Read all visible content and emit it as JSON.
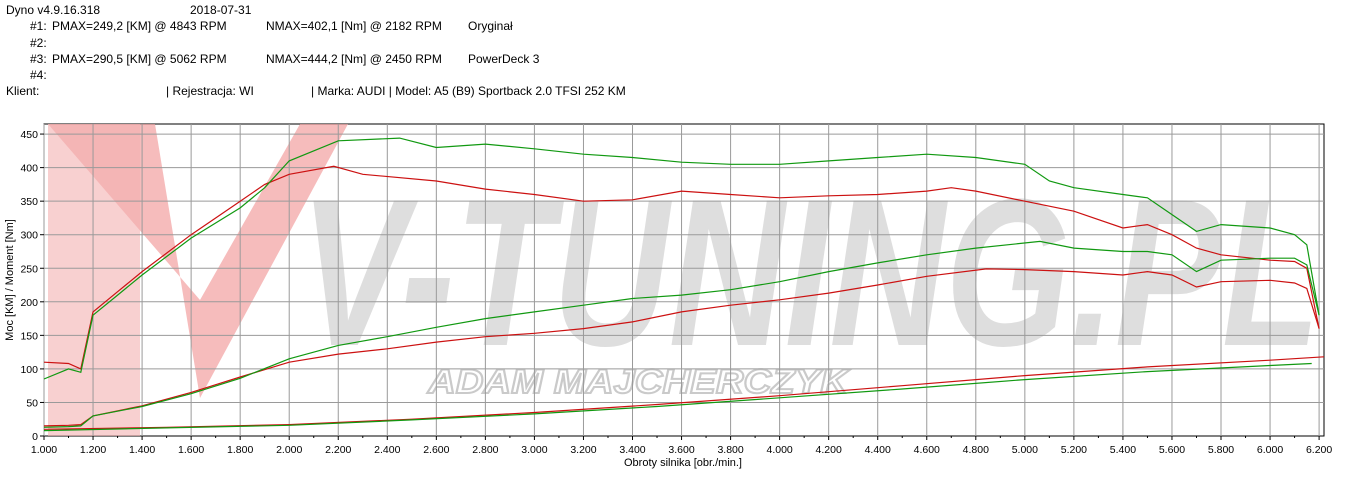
{
  "header": {
    "app_version": "Dyno v4.9.16.318",
    "date": "2018-07-31",
    "runs": [
      {
        "id": "#1:",
        "pmax": "PMAX=249,2 [KM] @ 4843 RPM",
        "nmax": "NMAX=402,1 [Nm] @ 2182 RPM",
        "label": "Oryginał"
      },
      {
        "id": "#2:",
        "pmax": "",
        "nmax": "",
        "label": ""
      },
      {
        "id": "#3:",
        "pmax": "PMAX=290,5 [KM] @ 5062 RPM",
        "nmax": "NMAX=444,2 [Nm] @ 2450 RPM",
        "label": "PowerDeck 3"
      },
      {
        "id": "#4:",
        "pmax": "",
        "nmax": "",
        "label": ""
      }
    ],
    "client_label": "Klient:",
    "registration": "| Rejestracja: WI",
    "vehicle": "| Marka: AUDI | Model: A5 (B9) Sportback 2.0 TFSI 252 KM"
  },
  "watermark": {
    "brand": "V-TUNING.PL",
    "owner": "ADAM MAJCHERCZYK"
  },
  "colors": {
    "original": "#cc1111",
    "tuned": "#119911",
    "grid": "#9a9a9a",
    "watermark_gray": "#d2d2d2",
    "watermark_red": "#f2a0a0"
  },
  "chart_data": {
    "type": "line",
    "xlabel": "Obroty silnika [obr./min.]",
    "ylabel": "Moc [KM] / Moment [Nm]",
    "xlim": [
      1000,
      6220
    ],
    "ylim": [
      0,
      465
    ],
    "x_ticks": [
      1000,
      1200,
      1400,
      1600,
      1800,
      2000,
      2200,
      2400,
      2600,
      2800,
      3000,
      3200,
      3400,
      3600,
      3800,
      4000,
      4200,
      4400,
      4600,
      4800,
      5000,
      5200,
      5400,
      5600,
      5800,
      6000,
      6200
    ],
    "x_tick_labels": [
      "1.000",
      "1.200",
      "1.400",
      "1.600",
      "1.800",
      "2.000",
      "2.200",
      "2.400",
      "2.600",
      "2.800",
      "3.000",
      "3.200",
      "3.400",
      "3.600",
      "3.800",
      "4.000",
      "4.200",
      "4.400",
      "4.600",
      "4.800",
      "5.000",
      "5.200",
      "5.400",
      "5.600",
      "5.800",
      "6.000",
      "6.200"
    ],
    "y_ticks": [
      0,
      50,
      100,
      150,
      200,
      250,
      300,
      350,
      400,
      450
    ],
    "grid": true,
    "series": [
      {
        "name": "#1 Oryginał",
        "quantity": "torque",
        "color": "#cc1111",
        "points": [
          [
            1000,
            110
          ],
          [
            1100,
            108
          ],
          [
            1150,
            100
          ],
          [
            1200,
            185
          ],
          [
            1300,
            215
          ],
          [
            1400,
            245
          ],
          [
            1600,
            300
          ],
          [
            1800,
            350
          ],
          [
            1900,
            375
          ],
          [
            2000,
            390
          ],
          [
            2182,
            402
          ],
          [
            2300,
            390
          ],
          [
            2600,
            380
          ],
          [
            2800,
            368
          ],
          [
            3000,
            360
          ],
          [
            3200,
            350
          ],
          [
            3400,
            352
          ],
          [
            3600,
            365
          ],
          [
            3800,
            360
          ],
          [
            4000,
            355
          ],
          [
            4200,
            358
          ],
          [
            4400,
            360
          ],
          [
            4600,
            365
          ],
          [
            4700,
            370
          ],
          [
            4800,
            365
          ],
          [
            5000,
            350
          ],
          [
            5200,
            335
          ],
          [
            5400,
            310
          ],
          [
            5500,
            315
          ],
          [
            5600,
            300
          ],
          [
            5700,
            280
          ],
          [
            5800,
            270
          ],
          [
            6000,
            262
          ],
          [
            6100,
            260
          ],
          [
            6150,
            250
          ],
          [
            6200,
            160
          ]
        ]
      },
      {
        "name": "#3 PowerDeck 3",
        "quantity": "torque",
        "color": "#119911",
        "points": [
          [
            1000,
            85
          ],
          [
            1100,
            100
          ],
          [
            1150,
            95
          ],
          [
            1200,
            180
          ],
          [
            1300,
            210
          ],
          [
            1400,
            240
          ],
          [
            1600,
            295
          ],
          [
            1800,
            340
          ],
          [
            1900,
            370
          ],
          [
            2000,
            410
          ],
          [
            2200,
            440
          ],
          [
            2450,
            444
          ],
          [
            2600,
            430
          ],
          [
            2800,
            435
          ],
          [
            3000,
            428
          ],
          [
            3200,
            420
          ],
          [
            3400,
            415
          ],
          [
            3600,
            408
          ],
          [
            3800,
            405
          ],
          [
            4000,
            405
          ],
          [
            4200,
            410
          ],
          [
            4400,
            415
          ],
          [
            4600,
            420
          ],
          [
            4800,
            415
          ],
          [
            5000,
            405
          ],
          [
            5100,
            380
          ],
          [
            5200,
            370
          ],
          [
            5400,
            360
          ],
          [
            5500,
            355
          ],
          [
            5600,
            330
          ],
          [
            5700,
            305
          ],
          [
            5800,
            315
          ],
          [
            6000,
            310
          ],
          [
            6100,
            300
          ],
          [
            6150,
            285
          ],
          [
            6200,
            180
          ]
        ]
      },
      {
        "name": "#1 Oryginał",
        "quantity": "power",
        "color": "#cc1111",
        "points": [
          [
            1000,
            15
          ],
          [
            1100,
            16
          ],
          [
            1150,
            17
          ],
          [
            1200,
            30
          ],
          [
            1400,
            45
          ],
          [
            1600,
            65
          ],
          [
            1800,
            88
          ],
          [
            2000,
            110
          ],
          [
            2200,
            122
          ],
          [
            2400,
            130
          ],
          [
            2600,
            140
          ],
          [
            2800,
            148
          ],
          [
            3000,
            153
          ],
          [
            3200,
            160
          ],
          [
            3400,
            170
          ],
          [
            3600,
            185
          ],
          [
            3800,
            195
          ],
          [
            4000,
            203
          ],
          [
            4200,
            213
          ],
          [
            4400,
            225
          ],
          [
            4600,
            238
          ],
          [
            4843,
            249
          ],
          [
            5000,
            248
          ],
          [
            5200,
            245
          ],
          [
            5400,
            240
          ],
          [
            5500,
            245
          ],
          [
            5600,
            240
          ],
          [
            5700,
            222
          ],
          [
            5800,
            230
          ],
          [
            6000,
            232
          ],
          [
            6100,
            228
          ],
          [
            6150,
            220
          ],
          [
            6200,
            160
          ]
        ]
      },
      {
        "name": "#3 PowerDeck 3",
        "quantity": "power",
        "color": "#119911",
        "points": [
          [
            1000,
            13
          ],
          [
            1100,
            14
          ],
          [
            1150,
            15
          ],
          [
            1200,
            30
          ],
          [
            1400,
            44
          ],
          [
            1600,
            63
          ],
          [
            1800,
            86
          ],
          [
            2000,
            115
          ],
          [
            2200,
            135
          ],
          [
            2400,
            148
          ],
          [
            2600,
            162
          ],
          [
            2800,
            175
          ],
          [
            3000,
            185
          ],
          [
            3200,
            195
          ],
          [
            3400,
            205
          ],
          [
            3600,
            210
          ],
          [
            3800,
            218
          ],
          [
            4000,
            230
          ],
          [
            4200,
            245
          ],
          [
            4400,
            258
          ],
          [
            4600,
            270
          ],
          [
            4800,
            280
          ],
          [
            5062,
            290
          ],
          [
            5200,
            280
          ],
          [
            5400,
            275
          ],
          [
            5500,
            275
          ],
          [
            5600,
            270
          ],
          [
            5700,
            245
          ],
          [
            5800,
            262
          ],
          [
            6000,
            265
          ],
          [
            6100,
            265
          ],
          [
            6150,
            255
          ],
          [
            6200,
            180
          ]
        ]
      },
      {
        "name": "#1 Oryginał",
        "quantity": "loss",
        "color": "#cc1111",
        "points": [
          [
            1000,
            10
          ],
          [
            1500,
            13
          ],
          [
            2000,
            17
          ],
          [
            2500,
            25
          ],
          [
            3000,
            35
          ],
          [
            3500,
            47
          ],
          [
            4000,
            60
          ],
          [
            4500,
            75
          ],
          [
            5000,
            90
          ],
          [
            5500,
            103
          ],
          [
            6000,
            113
          ],
          [
            6220,
            118
          ]
        ]
      },
      {
        "name": "#3 PowerDeck 3",
        "quantity": "loss",
        "color": "#119911",
        "points": [
          [
            1000,
            8
          ],
          [
            1500,
            12
          ],
          [
            2000,
            16
          ],
          [
            2500,
            24
          ],
          [
            3000,
            33
          ],
          [
            3500,
            44
          ],
          [
            4000,
            57
          ],
          [
            4500,
            70
          ],
          [
            5000,
            84
          ],
          [
            5500,
            96
          ],
          [
            6000,
            105
          ],
          [
            6170,
            108
          ]
        ]
      }
    ]
  }
}
